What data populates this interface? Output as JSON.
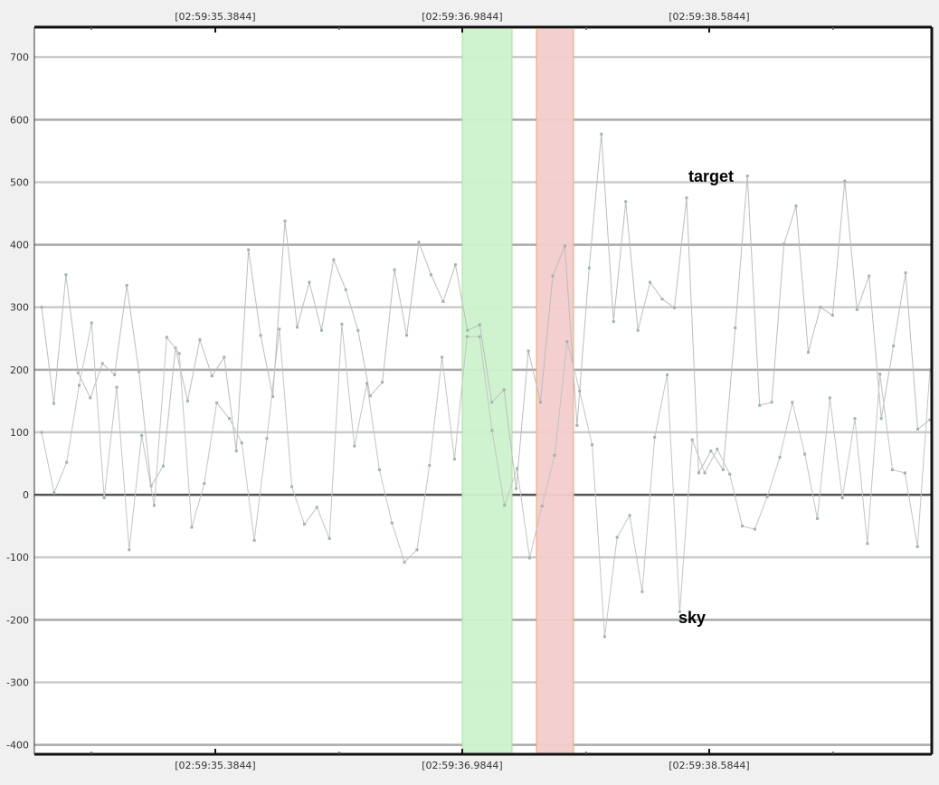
{
  "chart_data": {
    "type": "line",
    "title": "",
    "xlabel": "",
    "ylabel": "",
    "ylim": [
      -415,
      748
    ],
    "y_ticks": [
      700,
      600,
      500,
      400,
      300,
      200,
      100,
      0,
      -100,
      -200,
      -300,
      -400
    ],
    "y_tick_labels": [
      "700",
      "600",
      "500",
      "400",
      "300",
      "200",
      "100",
      "0",
      "-100",
      "-200",
      "-300",
      "-400"
    ],
    "x_tick_labels": [
      "[02:59:35.3844]",
      "[02:59:36.9844]",
      "[02:59:38.5844]"
    ],
    "grid": true,
    "highlight_regions": [
      {
        "label": "green band",
        "color": "#ccf2cc",
        "edge": "#a6e39a"
      },
      {
        "label": "red band",
        "color": "#f2cccc",
        "edge": "#e8a86a"
      }
    ],
    "annotations": [
      {
        "text": "target"
      },
      {
        "text": "sky"
      }
    ],
    "series": [
      {
        "color": "#bdbdbd",
        "values": [
          300,
          146,
          352,
          195,
          155,
          210,
          192,
          335,
          197,
          14,
          46,
          235,
          150,
          248,
          190,
          220,
          70,
          392,
          255,
          157,
          438,
          268,
          340,
          263,
          376,
          328,
          263,
          158,
          180,
          360,
          255,
          404,
          352,
          309,
          368,
          263,
          272,
          148,
          168,
          10,
          230,
          148,
          350,
          398,
          111,
          363,
          577,
          277,
          469,
          263,
          340,
          313,
          299,
          475,
          35,
          70,
          40,
          267,
          510,
          143,
          148,
          401,
          462,
          228,
          300,
          287,
          502,
          296,
          350,
          122,
          238,
          355,
          105,
          120
        ]
      },
      {
        "color": "#c4c4c4",
        "values": [
          100,
          3,
          52,
          175,
          275,
          -5,
          172,
          -88,
          95,
          -17,
          252,
          226,
          -52,
          18,
          147,
          122,
          83,
          -73,
          90,
          265,
          13,
          -47,
          -20,
          -70,
          273,
          78,
          178,
          40,
          -45,
          -108,
          -88,
          47,
          220,
          57,
          253,
          253,
          103,
          -17,
          42,
          -101,
          -18,
          63,
          245,
          166,
          80,
          -227,
          -68,
          -33,
          -155,
          92,
          192,
          -187,
          88,
          35,
          73,
          33,
          -50,
          -55,
          -3,
          60,
          148,
          65,
          -38,
          155,
          -5,
          122,
          -78,
          193,
          40,
          35,
          -83,
          200
        ]
      }
    ]
  }
}
